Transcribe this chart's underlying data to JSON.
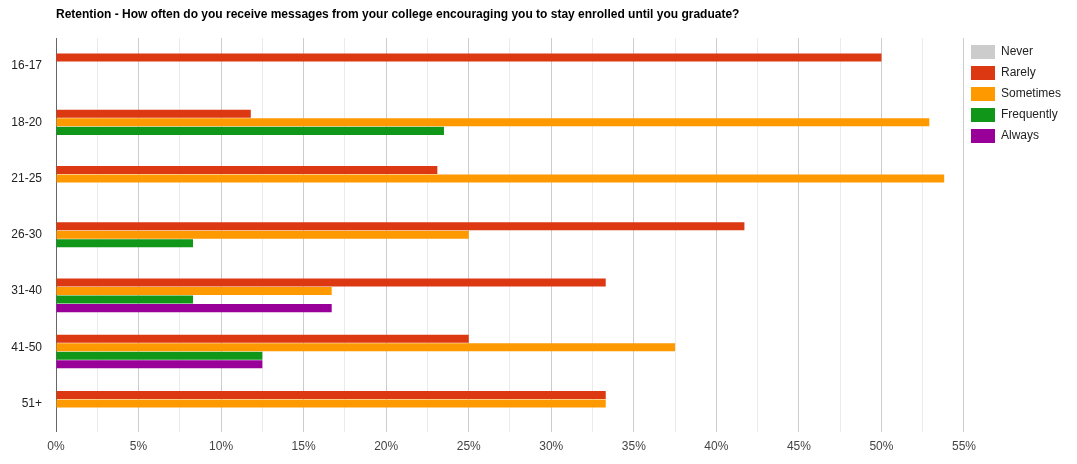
{
  "chart_data": {
    "type": "bar",
    "orientation": "horizontal",
    "title": "Retention - How often do you receive messages from your college encouraging you to stay enrolled until you graduate?",
    "categories": [
      "16-17",
      "18-20",
      "21-25",
      "26-30",
      "31-40",
      "41-50",
      "51+"
    ],
    "series": [
      {
        "name": "Never",
        "color": "#cccccc",
        "values": [
          0,
          0,
          0,
          0,
          0,
          0,
          0
        ]
      },
      {
        "name": "Rarely",
        "color": "#dc3912",
        "values": [
          50,
          11.8,
          23.1,
          41.7,
          33.3,
          25,
          33.3
        ]
      },
      {
        "name": "Sometimes",
        "color": "#ff9900",
        "values": [
          0,
          52.9,
          53.8,
          25,
          16.7,
          37.5,
          33.3
        ]
      },
      {
        "name": "Frequently",
        "color": "#109618",
        "values": [
          0,
          23.5,
          0,
          8.3,
          8.3,
          12.5,
          0
        ]
      },
      {
        "name": "Always",
        "color": "#990099",
        "values": [
          0,
          0,
          0,
          0,
          16.7,
          12.5,
          0
        ]
      }
    ],
    "xlim": [
      0,
      55
    ],
    "xticks": [
      {
        "value": 0,
        "label": "0%"
      },
      {
        "value": 2.5,
        "label": null
      },
      {
        "value": 5,
        "label": "5%"
      },
      {
        "value": 7.5,
        "label": null
      },
      {
        "value": 10,
        "label": "10%"
      },
      {
        "value": 12.5,
        "label": null
      },
      {
        "value": 15,
        "label": "15%"
      },
      {
        "value": 17.5,
        "label": null
      },
      {
        "value": 20,
        "label": "20%"
      },
      {
        "value": 22.5,
        "label": null
      },
      {
        "value": 25,
        "label": "25%"
      },
      {
        "value": 27.5,
        "label": null
      },
      {
        "value": 30,
        "label": "30%"
      },
      {
        "value": 32.5,
        "label": null
      },
      {
        "value": 35,
        "label": "35%"
      },
      {
        "value": 37.5,
        "label": null
      },
      {
        "value": 40,
        "label": "40%"
      },
      {
        "value": 42.5,
        "label": null
      },
      {
        "value": 45,
        "label": "45%"
      },
      {
        "value": 47.5,
        "label": null
      },
      {
        "value": 50,
        "label": "50%"
      },
      {
        "value": 52.5,
        "label": null
      },
      {
        "value": 55,
        "label": "55%"
      }
    ],
    "grid": "x",
    "legend": "right"
  }
}
